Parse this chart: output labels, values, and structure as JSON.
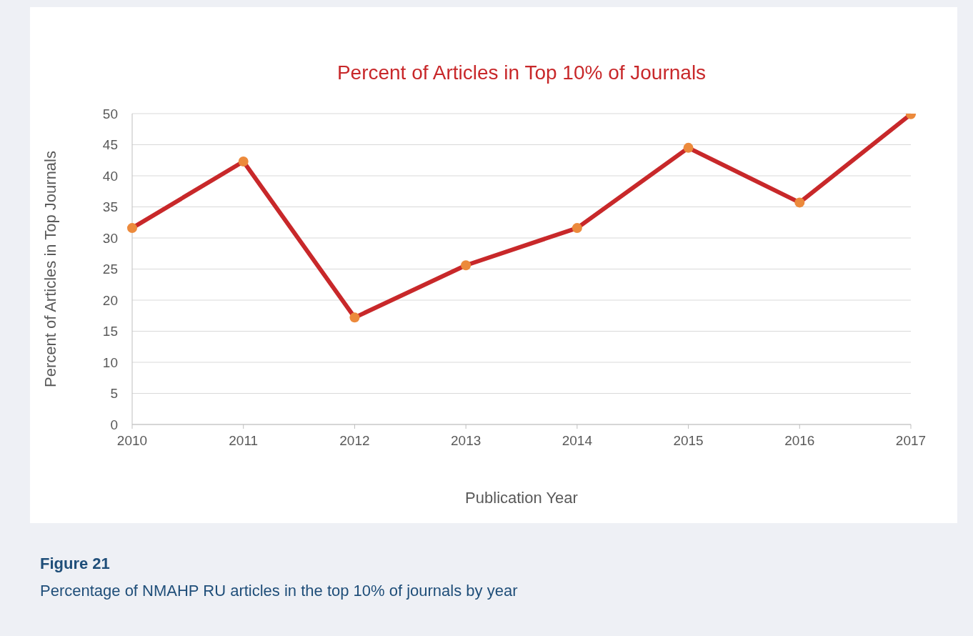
{
  "chart_data": {
    "type": "line",
    "title": "Percent of Articles in Top 10% of Journals",
    "xlabel": "Publication Year",
    "ylabel": "Percent of Articles in Top Journals",
    "categories": [
      "2010",
      "2011",
      "2012",
      "2013",
      "2014",
      "2015",
      "2016",
      "2017"
    ],
    "series": [
      {
        "color": "#c8282a",
        "values": [
          31.6,
          42.3,
          17.2,
          25.6,
          31.6,
          44.5,
          35.7,
          49.9
        ]
      }
    ],
    "ylim": [
      0,
      50
    ],
    "yticks": [
      0,
      5,
      10,
      15,
      20,
      25,
      30,
      35,
      40,
      45,
      50
    ],
    "grid": "y",
    "legend": false,
    "marker": "circle",
    "line_style": "solid",
    "annotations": [
      "Figure 21",
      "Percentage of NMAHP RU articles in the top 10% of journals by year"
    ]
  }
}
